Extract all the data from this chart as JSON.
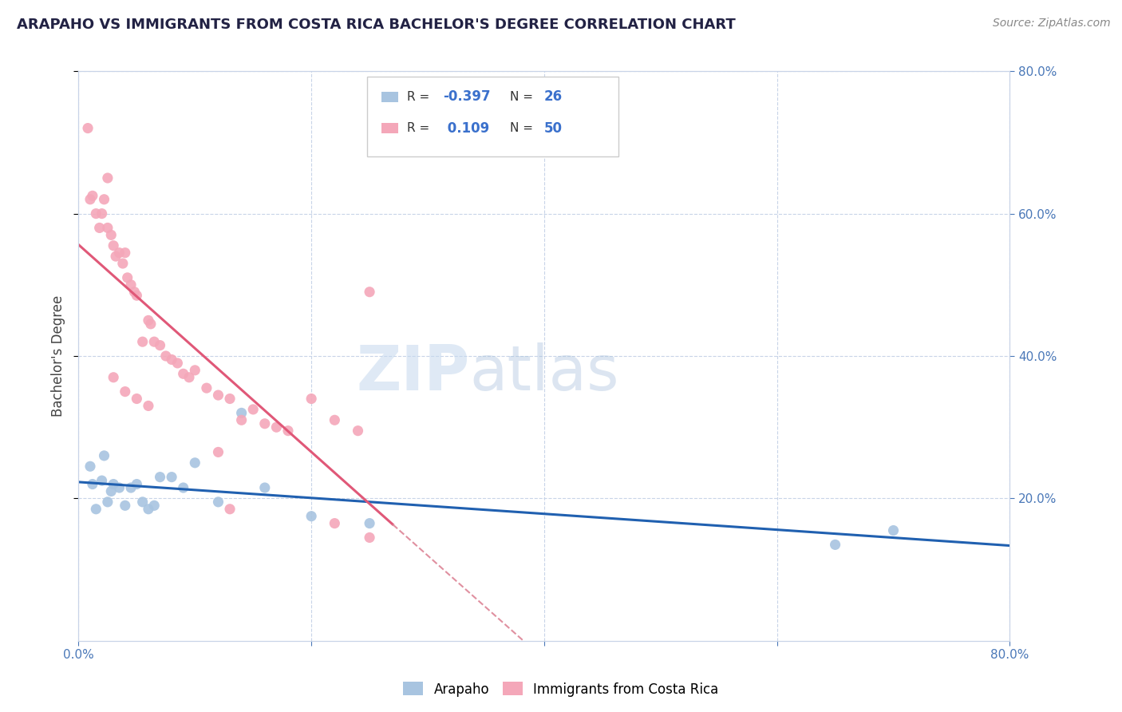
{
  "title": "ARAPAHO VS IMMIGRANTS FROM COSTA RICA BACHELOR'S DEGREE CORRELATION CHART",
  "source": "Source: ZipAtlas.com",
  "ylabel": "Bachelor's Degree",
  "xlim": [
    0.0,
    0.8
  ],
  "ylim": [
    0.0,
    0.8
  ],
  "arapaho_color": "#a8c4e0",
  "costa_rica_color": "#f4a7b9",
  "arapaho_line_color": "#2060b0",
  "costa_rica_line_color": "#e05878",
  "costa_rica_dashed_color": "#e090a0",
  "background_color": "#ffffff",
  "grid_color": "#c8d4e8",
  "arapaho_scatter_x": [
    0.01,
    0.012,
    0.015,
    0.02,
    0.022,
    0.025,
    0.028,
    0.03,
    0.035,
    0.04,
    0.045,
    0.05,
    0.055,
    0.06,
    0.065,
    0.07,
    0.08,
    0.09,
    0.1,
    0.12,
    0.14,
    0.16,
    0.2,
    0.25,
    0.65,
    0.7
  ],
  "arapaho_scatter_y": [
    0.245,
    0.22,
    0.185,
    0.225,
    0.26,
    0.195,
    0.21,
    0.22,
    0.215,
    0.19,
    0.215,
    0.22,
    0.195,
    0.185,
    0.19,
    0.23,
    0.23,
    0.215,
    0.25,
    0.195,
    0.32,
    0.215,
    0.175,
    0.165,
    0.135,
    0.155
  ],
  "costa_rica_scatter_x": [
    0.008,
    0.01,
    0.012,
    0.015,
    0.018,
    0.02,
    0.022,
    0.025,
    0.025,
    0.028,
    0.03,
    0.032,
    0.035,
    0.038,
    0.04,
    0.042,
    0.045,
    0.048,
    0.05,
    0.055,
    0.06,
    0.062,
    0.065,
    0.07,
    0.075,
    0.08,
    0.085,
    0.09,
    0.095,
    0.1,
    0.11,
    0.12,
    0.13,
    0.14,
    0.15,
    0.16,
    0.17,
    0.18,
    0.2,
    0.22,
    0.24,
    0.25,
    0.03,
    0.04,
    0.05,
    0.06,
    0.12,
    0.13,
    0.22,
    0.25
  ],
  "costa_rica_scatter_y": [
    0.72,
    0.62,
    0.625,
    0.6,
    0.58,
    0.6,
    0.62,
    0.58,
    0.65,
    0.57,
    0.555,
    0.54,
    0.545,
    0.53,
    0.545,
    0.51,
    0.5,
    0.49,
    0.485,
    0.42,
    0.45,
    0.445,
    0.42,
    0.415,
    0.4,
    0.395,
    0.39,
    0.375,
    0.37,
    0.38,
    0.355,
    0.345,
    0.34,
    0.31,
    0.325,
    0.305,
    0.3,
    0.295,
    0.34,
    0.31,
    0.295,
    0.49,
    0.37,
    0.35,
    0.34,
    0.33,
    0.265,
    0.185,
    0.165,
    0.145
  ]
}
